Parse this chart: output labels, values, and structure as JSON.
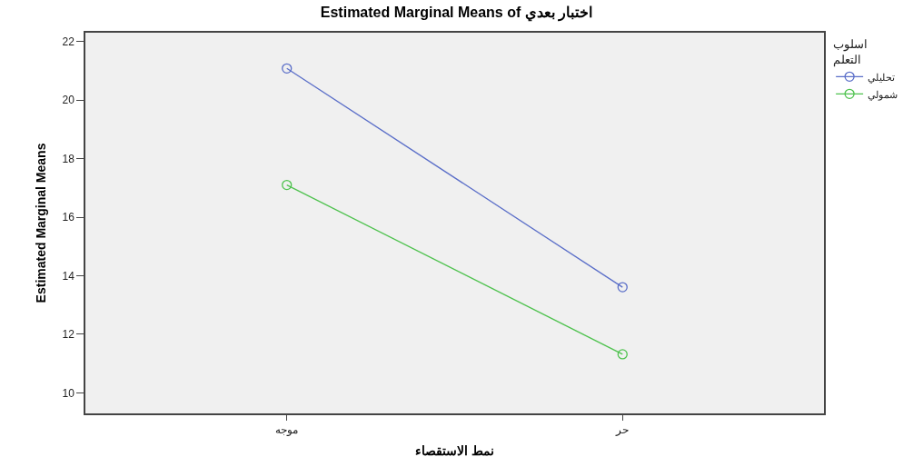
{
  "chart_data": {
    "type": "line",
    "title": "Estimated Marginal Means of اختبار بعدي",
    "xlabel": "نمط الاستقصاء",
    "ylabel": "Estimated Marginal Means",
    "legend_title": "اسلوب التعلم",
    "categories": [
      "موجه",
      "حر"
    ],
    "series": [
      {
        "name": "تحليلي",
        "color": "#5a6ec8",
        "values": [
          21.08,
          13.61
        ]
      },
      {
        "name": "شمولي",
        "color": "#4ec24e",
        "values": [
          17.1,
          11.32
        ]
      }
    ],
    "ylim": [
      9.3,
      22.3
    ],
    "yticks": [
      10,
      12,
      14,
      16,
      18,
      20,
      22
    ],
    "grid": false,
    "legend": "top right",
    "marker": "circle",
    "line_style": "solid"
  }
}
